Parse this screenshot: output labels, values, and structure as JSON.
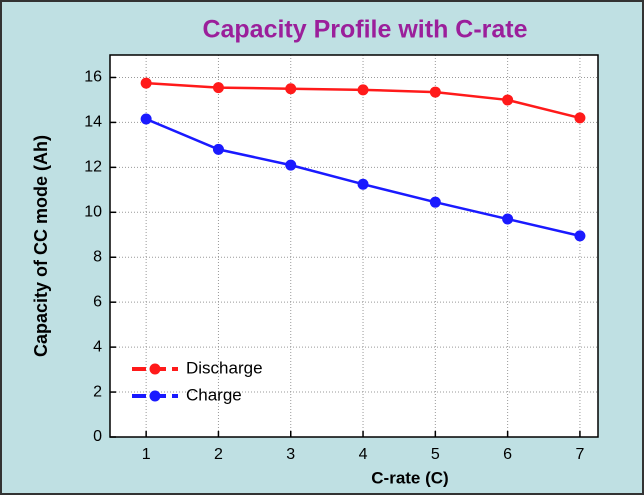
{
  "chart_data": {
    "type": "line",
    "title": "Capacity Profile with C-rate",
    "x_label": "C-rate (C)",
    "y_label": "Capacity of CC mode (Ah)",
    "x": [
      1,
      2,
      3,
      4,
      5,
      6,
      7
    ],
    "series": [
      {
        "name": "Discharge",
        "color": "#ff1a1a",
        "values": [
          15.75,
          15.55,
          15.5,
          15.45,
          15.35,
          15.0,
          14.2
        ]
      },
      {
        "name": "Charge",
        "color": "#1a1aff",
        "values": [
          14.15,
          12.8,
          12.1,
          11.25,
          10.45,
          9.7,
          8.95
        ]
      }
    ],
    "xlim": [
      0.5,
      7.25
    ],
    "xticks": [
      1,
      2,
      3,
      4,
      5,
      6,
      7
    ],
    "ylim": [
      0,
      17
    ],
    "yticks": [
      0,
      2,
      4,
      6,
      8,
      10,
      12,
      14,
      16
    ],
    "grid": true,
    "legend": "lower left",
    "title_color": "#9b1f9b"
  }
}
